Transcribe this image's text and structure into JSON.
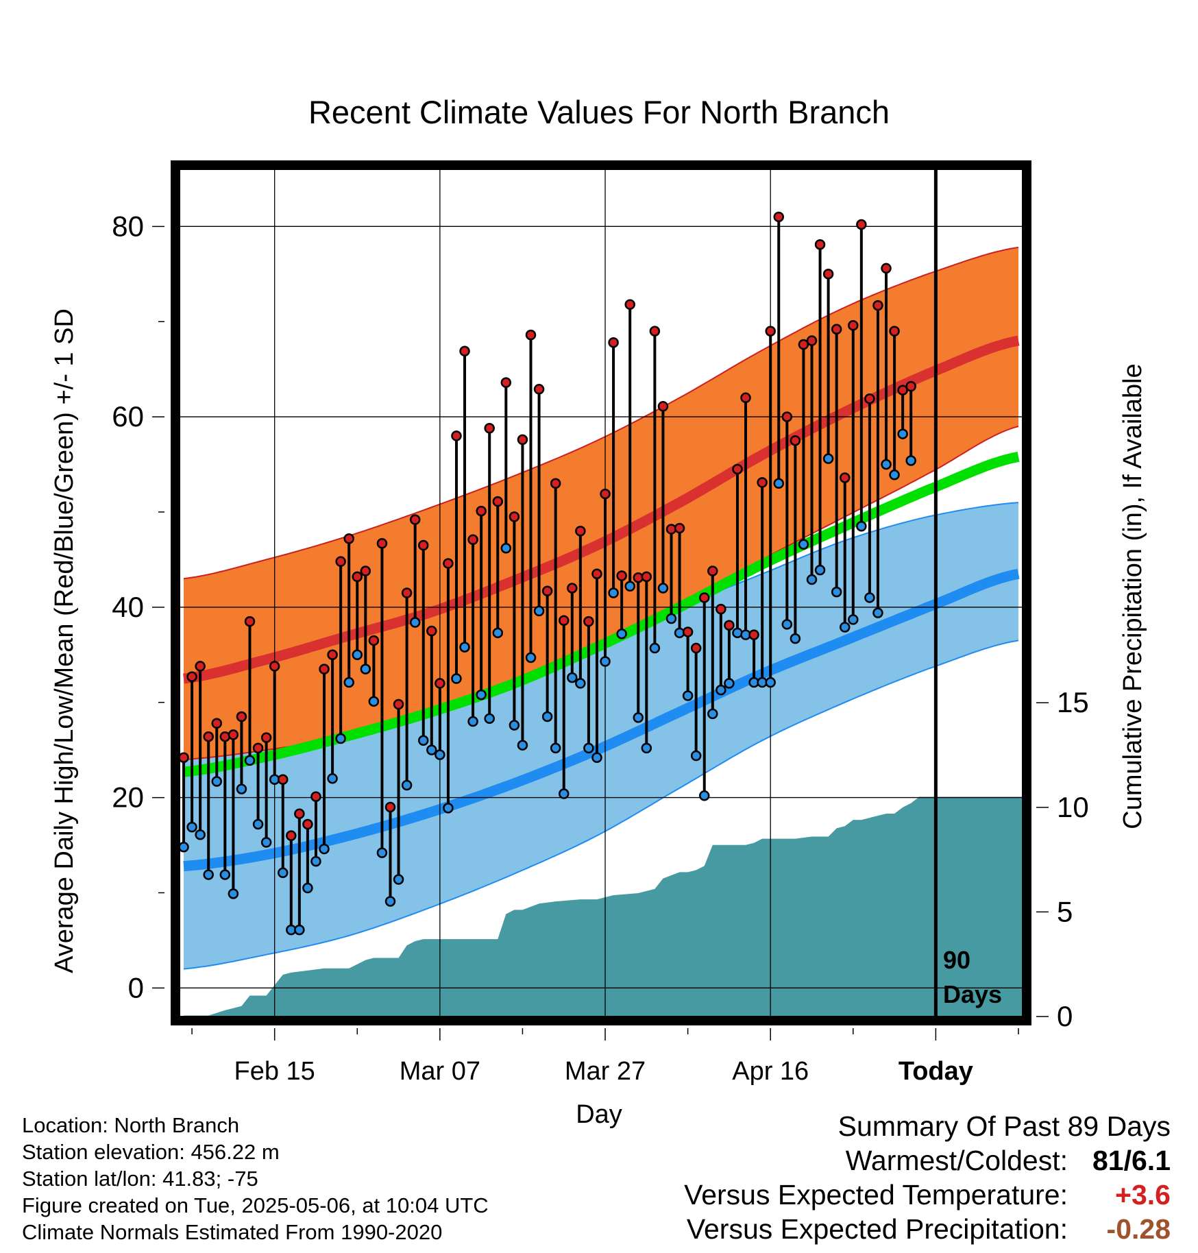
{
  "chart_data": {
    "type": "line",
    "title": "Recent Climate Values For North Branch",
    "xlabel": "Day",
    "ylabel_left": "Average Daily High/Low/Mean (Red/Blue/Green) +/- 1 SD",
    "ylabel_right": "Cumulative Precipitation (in), If Available",
    "x_tick_labels": [
      "Feb 15",
      "Mar 07",
      "Mar 27",
      "Apr 16",
      "Today"
    ],
    "x_tick_days": [
      11,
      31,
      51,
      71,
      91
    ],
    "xlim": [
      -0.5,
      101.5
    ],
    "ylim_left": [
      -3,
      86
    ],
    "yticks_left": [
      0,
      20,
      40,
      60,
      80
    ],
    "ylim_right": [
      0,
      40.5
    ],
    "yticks_right": [
      0,
      5,
      10,
      15
    ],
    "grid": true,
    "today_marker_label": [
      "90",
      "Days"
    ],
    "normal_high": {
      "x": [
        0,
        10,
        20,
        30,
        40,
        50,
        60,
        70,
        80,
        90,
        101
      ],
      "mean": [
        32.5,
        34.5,
        37,
        39.5,
        42.8,
        46.5,
        51,
        56,
        60.5,
        64.5,
        68
      ],
      "upper": [
        43,
        45,
        47.5,
        50.5,
        53.8,
        57.5,
        62,
        67,
        71.5,
        75,
        77.8
      ],
      "lower": [
        24,
        25,
        26.5,
        29,
        32,
        35.5,
        40,
        45,
        49.5,
        54,
        59
      ]
    },
    "normal_low": {
      "x": [
        0,
        10,
        20,
        30,
        40,
        50,
        60,
        70,
        80,
        90,
        101
      ],
      "mean": [
        12.8,
        14,
        16,
        18.5,
        21.5,
        25,
        29,
        33,
        36.5,
        40,
        43.5
      ],
      "upper": [
        24.5,
        25.5,
        27,
        29.5,
        32.5,
        36,
        40,
        43.5,
        47,
        49.5,
        51
      ],
      "lower": [
        2,
        3.5,
        5.5,
        8.5,
        12,
        16,
        21,
        26,
        30,
        33.5,
        36.5
      ]
    },
    "normal_mean": {
      "x": [
        0,
        10,
        20,
        30,
        40,
        50,
        60,
        70,
        80,
        90,
        101
      ],
      "values": [
        22.7,
        24.3,
        26.5,
        29,
        32,
        35.8,
        40,
        44.5,
        48.5,
        52.3,
        55.8
      ]
    },
    "observed": {
      "x": [
        0,
        1,
        2,
        3,
        4,
        5,
        6,
        7,
        8,
        9,
        10,
        11,
        12,
        13,
        14,
        15,
        16,
        17,
        18,
        19,
        20,
        21,
        22,
        23,
        24,
        25,
        26,
        27,
        28,
        29,
        30,
        31,
        32,
        33,
        34,
        35,
        36,
        37,
        38,
        39,
        40,
        41,
        42,
        43,
        44,
        45,
        46,
        47,
        48,
        49,
        50,
        51,
        52,
        53,
        54,
        55,
        56,
        57,
        58,
        59,
        60,
        61,
        62,
        63,
        64,
        65,
        66,
        67,
        68,
        69,
        70,
        71,
        72,
        73,
        74,
        75,
        76,
        77,
        78,
        79,
        80,
        81,
        82,
        83,
        84,
        85,
        86,
        87,
        88
      ],
      "high": [
        24.2,
        32.7,
        33.8,
        26.4,
        27.8,
        26.4,
        26.6,
        28.5,
        38.5,
        25.2,
        26.3,
        33.8,
        21.9,
        16.0,
        18.3,
        17.2,
        20.1,
        33.5,
        35,
        44.8,
        47.2,
        43.2,
        43.8,
        36.5,
        46.7,
        19,
        29.8,
        41.5,
        49.2,
        46.5,
        37.5,
        32,
        44.6,
        58,
        66.9,
        47.1,
        50.1,
        58.8,
        51.1,
        63.6,
        49.5,
        57.6,
        68.6,
        62.9,
        41.7,
        53,
        38.6,
        42,
        48,
        38.5,
        43.5,
        51.9,
        67.8,
        43.3,
        71.8,
        43.1,
        43.2,
        69,
        61.1,
        48.2,
        48.3,
        37.4,
        35.7,
        41,
        43.8,
        39.8,
        38.1,
        54.5,
        62,
        37.1,
        53.1,
        69,
        81,
        60,
        57.5,
        67.6,
        68,
        78.1,
        75,
        69.2,
        53.6,
        69.6,
        80.2,
        61.9,
        71.7,
        75.6,
        69,
        62.8,
        63.2
      ],
      "low": [
        14.8,
        16.9,
        16.1,
        11.9,
        21.7,
        11.9,
        9.9,
        20.9,
        23.9,
        17.2,
        15.3,
        21.9,
        12.1,
        6.1,
        6.1,
        10.5,
        13.3,
        14.6,
        22.0,
        26.2,
        32.1,
        35.0,
        33.5,
        30.1,
        14.2,
        9.1,
        11.4,
        21.3,
        38.4,
        26.0,
        25.0,
        24.5,
        18.9,
        32.5,
        35.8,
        28.0,
        30.8,
        28.3,
        37.3,
        46.2,
        27.6,
        25.5,
        34.7,
        39.6,
        28.5,
        25.2,
        20.4,
        32.6,
        32.0,
        25.2,
        24.2,
        34.3,
        41.5,
        37.2,
        42.2,
        28.4,
        25.2,
        35.7,
        42.0,
        38.8,
        37.3,
        30.7,
        24.4,
        20.2,
        28.8,
        31.3,
        32.0,
        37.3,
        37.1,
        32.1,
        32.1,
        32.1,
        53.0,
        38.2,
        36.7,
        46.6,
        42.9,
        43.9,
        55.6,
        41.6,
        37.9,
        38.7,
        48.5,
        41.0,
        39.4,
        55.0,
        53.9,
        58.2,
        55.4
      ]
    },
    "cumulative_precip": {
      "x": [
        0,
        3,
        5,
        7,
        8,
        10,
        11,
        12,
        13,
        15,
        17,
        20,
        21,
        22,
        23,
        24,
        26,
        27,
        28,
        29,
        30,
        32,
        33,
        34,
        35,
        36,
        37,
        38,
        39,
        40,
        41,
        43,
        45,
        48,
        50,
        52,
        55,
        57,
        58,
        60,
        61,
        62,
        63,
        64,
        65,
        66,
        67,
        68,
        69,
        70,
        71,
        72,
        73,
        74,
        76,
        77,
        78,
        79,
        80,
        81,
        82,
        83,
        84,
        85,
        86,
        87,
        88,
        89,
        99
      ],
      "values": [
        0.05,
        0.05,
        0.3,
        0.5,
        1.0,
        1.0,
        1.5,
        2.0,
        2.1,
        2.2,
        2.3,
        2.3,
        2.5,
        2.7,
        2.8,
        2.8,
        2.8,
        3.4,
        3.6,
        3.7,
        3.7,
        3.7,
        3.7,
        3.7,
        3.7,
        3.7,
        3.7,
        3.7,
        4.9,
        5.1,
        5.1,
        5.4,
        5.5,
        5.6,
        5.6,
        5.8,
        5.9,
        6.1,
        6.6,
        6.9,
        6.9,
        7.0,
        7.2,
        8.2,
        8.2,
        8.2,
        8.2,
        8.2,
        8.3,
        8.5,
        8.5,
        8.5,
        8.5,
        8.5,
        8.6,
        8.6,
        8.6,
        9.0,
        9.1,
        9.4,
        9.4,
        9.5,
        9.6,
        9.7,
        9.7,
        10.0,
        10.2,
        10.5,
        10.5
      ]
    }
  },
  "info": {
    "location": "Location: North Branch",
    "elevation": "Station elevation: 456.22 m",
    "latlon": "Station lat/lon: 41.83; -75",
    "created": "Figure created on Tue, 2025-05-06, at 10:04 UTC",
    "normals": "Climate Normals Estimated From 1990-2020"
  },
  "summary": {
    "title": "Summary Of Past 89 Days",
    "warm_cold_label": "Warmest/Coldest:",
    "warm_cold_value": "81/6.1",
    "temp_label": "Versus Expected Temperature:",
    "temp_value": "+3.6",
    "temp_color": "#d42020",
    "precip_label": "Versus Expected Precipitation:",
    "precip_value": "-0.28",
    "precip_color": "#a0522d"
  },
  "colors": {
    "high_band": "#f47c2f",
    "high_mean": "#d93030",
    "low_band": "#85c2e8",
    "low_mean": "#1e8cf0",
    "mean_line": "#00e000",
    "precip_fill": "#4799a2",
    "high_marker": "#d42020",
    "low_marker": "#2c8ee0"
  }
}
